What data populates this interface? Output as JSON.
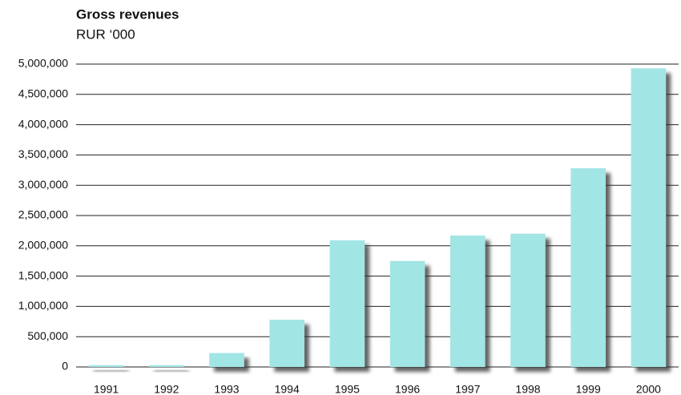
{
  "chart_data": {
    "type": "bar",
    "title": "Gross revenues",
    "subtitle": "RUR ‘000",
    "categories": [
      "1991",
      "1992",
      "1993",
      "1994",
      "1995",
      "1996",
      "1997",
      "1998",
      "1999",
      "2000"
    ],
    "values": [
      30000,
      30000,
      230000,
      780000,
      2090000,
      1750000,
      2170000,
      2200000,
      3280000,
      4930000
    ],
    "color": "#a2e5e5",
    "ylim": [
      0,
      5000000
    ],
    "yticks": [
      0,
      {
        "value": 500000,
        "label": "500,000"
      },
      {
        "value": 1000000,
        "label": "1,000,000"
      },
      {
        "value": 1500000,
        "label": "1,500,000"
      },
      {
        "value": 2000000,
        "label": "2,000,000"
      },
      {
        "value": 2500000,
        "label": "2,500,000"
      },
      {
        "value": 3000000,
        "label": "3,000,000"
      },
      {
        "value": 3500000,
        "label": "3,500,000"
      },
      {
        "value": 4000000,
        "label": "4,000,000"
      },
      {
        "value": 4500000,
        "label": "4,500,000"
      },
      {
        "value": 5000000,
        "label": "5,000,000"
      }
    ],
    "grid": true
  }
}
